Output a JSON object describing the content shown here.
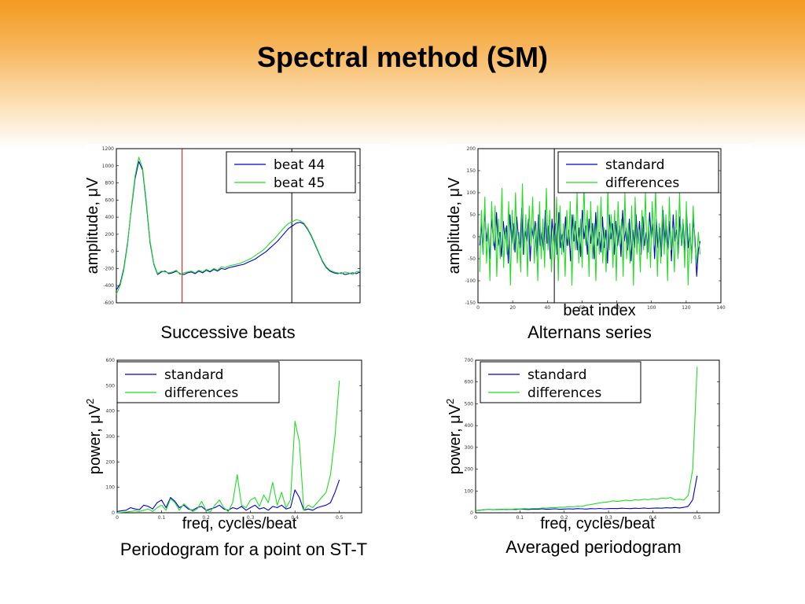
{
  "title": "Spectral method (SM)",
  "captions": [
    "Successive beats",
    "Alternans series",
    "Periodogram for a point on ST-T",
    "Averaged periodogram"
  ],
  "colors": {
    "blue": "#0000cc",
    "green": "#22dd22",
    "red": "#dd0000"
  },
  "chart_data": [
    {
      "type": "line",
      "ylabel": "amplitude, μV",
      "xlabel": "",
      "ylim": [
        -600,
        1200
      ],
      "yticks": [
        "-600",
        "-400",
        "-200",
        "0",
        "200",
        "400",
        "600",
        "800",
        "1000",
        "1200"
      ],
      "legend": [
        "beat 44",
        "beat 45"
      ],
      "legend_position": "top-right",
      "vlines": [
        {
          "x_frac": 0.27,
          "color": "red"
        },
        {
          "x_frac": 0.72,
          "color": "black"
        }
      ],
      "series": [
        {
          "name": "beat 44",
          "color": "blue",
          "values": [
            -450,
            -380,
            -200,
            100,
            500,
            850,
            1050,
            950,
            550,
            100,
            -150,
            -270,
            -240,
            -230,
            -260,
            -250,
            -230,
            -260,
            -270,
            -250,
            -240,
            -260,
            -230,
            -250,
            -220,
            -240,
            -210,
            -230,
            -200,
            -210,
            -190,
            -180,
            -170,
            -160,
            -150,
            -130,
            -110,
            -90,
            -60,
            -30,
            0,
            40,
            80,
            120,
            170,
            220,
            270,
            300,
            330,
            340,
            320,
            260,
            180,
            80,
            -20,
            -120,
            -190,
            -230,
            -250,
            -260,
            -250,
            -270,
            -260,
            -250,
            -260,
            -240
          ]
        },
        {
          "name": "beat 45",
          "color": "green",
          "values": [
            -500,
            -400,
            -220,
            80,
            520,
            880,
            1100,
            970,
            580,
            120,
            -140,
            -260,
            -230,
            -240,
            -250,
            -240,
            -220,
            -270,
            -250,
            -240,
            -230,
            -250,
            -220,
            -240,
            -210,
            -230,
            -200,
            -220,
            -180,
            -190,
            -170,
            -160,
            -150,
            -140,
            -120,
            -100,
            -80,
            -50,
            -20,
            10,
            50,
            100,
            140,
            190,
            240,
            290,
            330,
            350,
            370,
            360,
            330,
            270,
            190,
            90,
            -10,
            -110,
            -180,
            -220,
            -240,
            -250,
            -260,
            -240,
            -250,
            -270,
            -240,
            -230
          ]
        }
      ]
    },
    {
      "type": "line",
      "ylabel": "amplitude, μV",
      "xlabel": "beat index",
      "xlim": [
        0,
        140
      ],
      "ylim": [
        -150,
        200
      ],
      "xticks": [
        "0",
        "20",
        "40",
        "60",
        "80",
        "100",
        "120",
        "140"
      ],
      "yticks": [
        "-150",
        "-100",
        "-50",
        "0",
        "50",
        "100",
        "150",
        "200"
      ],
      "legend": [
        "standard",
        "differences"
      ],
      "legend_position": "top-right",
      "vlines": [
        {
          "x": 44,
          "color": "black"
        }
      ],
      "series": [
        {
          "name": "standard",
          "color": "blue",
          "x_start": 1,
          "x_end": 128,
          "values": [
            -20,
            30,
            -40,
            60,
            -10,
            20,
            -50,
            40,
            0,
            -30,
            55,
            -20,
            10,
            -45,
            35,
            -5,
            25,
            -60,
            50,
            -15,
            30,
            -35,
            45,
            0,
            -25,
            65,
            -40,
            15,
            -10,
            40,
            -55,
            20,
            -5,
            35,
            -45,
            50,
            -20,
            10,
            -30,
            60,
            -15,
            25,
            -50,
            40,
            -10,
            30,
            -40,
            55,
            -25,
            5,
            -35,
            45,
            -20,
            15,
            -55,
            50,
            -10,
            35,
            -30,
            20,
            -45,
            60,
            -5,
            25,
            -40,
            40,
            -15,
            30,
            -50,
            55,
            -20,
            10,
            -35,
            45,
            -25,
            15,
            -60,
            50,
            -5,
            30,
            -40,
            35,
            -20,
            25,
            -45,
            60,
            -10,
            20,
            -30,
            40,
            -55,
            15,
            -25,
            50,
            -15,
            35,
            -40,
            45,
            -20,
            10,
            -35,
            55,
            -5,
            30,
            -50,
            40,
            -25,
            20,
            -45,
            60,
            -15,
            25,
            -30,
            35,
            -55,
            50,
            -10,
            15,
            -40,
            45,
            -20,
            30,
            -35,
            55,
            -25,
            10,
            -50,
            40,
            -5,
            -90,
            -30,
            -10
          ]
        },
        {
          "name": "differences",
          "color": "green",
          "x_start": 1,
          "x_end": 128,
          "values": [
            -80,
            60,
            -40,
            90,
            -60,
            30,
            -100,
            80,
            -20,
            70,
            -90,
            40,
            -50,
            110,
            -70,
            20,
            -40,
            80,
            -110,
            60,
            -30,
            100,
            -60,
            10,
            -80,
            120,
            -40,
            50,
            -90,
            70,
            -20,
            90,
            -60,
            30,
            -100,
            80,
            -50,
            40,
            -70,
            110,
            -30,
            60,
            -80,
            20,
            -50,
            90,
            -100,
            70,
            -40,
            30,
            -90,
            60,
            -20,
            80,
            -110,
            50,
            -30,
            100,
            -60,
            40,
            -70,
            120,
            -20,
            60,
            -90,
            80,
            -50,
            30,
            -100,
            70,
            -40,
            90,
            -60,
            20,
            -80,
            110,
            -30,
            50,
            -70,
            60,
            -100,
            80,
            -20,
            40,
            -90,
            100,
            -50,
            30,
            -60,
            70,
            -110,
            90,
            -40,
            20,
            -80,
            60,
            -30,
            100,
            -50,
            40,
            -70,
            80,
            -20,
            110,
            -90,
            30,
            -60,
            70,
            -40,
            50,
            -100,
            90,
            -30,
            20,
            -80,
            60,
            -50,
            100,
            -20,
            40,
            -70,
            80,
            -110,
            30,
            -60,
            70,
            -20,
            -60,
            10,
            -40
          ]
        }
      ]
    },
    {
      "type": "line",
      "ylabel": "power, μV",
      "xlabel": "freq, cycles/beat",
      "xlim": [
        0,
        0.55
      ],
      "ylim": [
        0,
        600
      ],
      "xticks": [
        "0",
        "0.1",
        "0.2",
        "0.3",
        "0.4",
        "0.5"
      ],
      "yticks": [
        "0",
        "100",
        "200",
        "300",
        "400",
        "500",
        "600"
      ],
      "legend": [
        "standard",
        "differences"
      ],
      "legend_position": "top-left",
      "series": [
        {
          "name": "standard",
          "color": "blue",
          "x_start": 0,
          "x_end": 0.5,
          "values": [
            5,
            8,
            10,
            20,
            15,
            12,
            30,
            25,
            15,
            40,
            50,
            20,
            60,
            45,
            20,
            30,
            15,
            10,
            20,
            25,
            10,
            15,
            20,
            30,
            15,
            10,
            20,
            15,
            25,
            10,
            20,
            30,
            15,
            20,
            10,
            25,
            20,
            30,
            15,
            20,
            90,
            60,
            10,
            15,
            10,
            20,
            25,
            30,
            40,
            80,
            130
          ]
        },
        {
          "name": "differences",
          "color": "green",
          "x_start": 0,
          "x_end": 0.5,
          "values": [
            0,
            2,
            3,
            5,
            8,
            5,
            10,
            15,
            5,
            20,
            30,
            10,
            55,
            40,
            10,
            35,
            20,
            5,
            15,
            45,
            10,
            5,
            30,
            50,
            20,
            5,
            40,
            150,
            30,
            20,
            50,
            60,
            25,
            70,
            40,
            120,
            30,
            80,
            20,
            50,
            360,
            280,
            10,
            30,
            20,
            40,
            60,
            80,
            150,
            300,
            520
          ]
        }
      ]
    },
    {
      "type": "line",
      "ylabel": "power, μV",
      "xlabel": "freq, cycles/beat",
      "xlim": [
        0,
        0.55
      ],
      "ylim": [
        0,
        700
      ],
      "xticks": [
        "0",
        "0.1",
        "0.2",
        "0.3",
        "0.4",
        "0.5"
      ],
      "yticks": [
        "0",
        "100",
        "200",
        "300",
        "400",
        "500",
        "600",
        "700"
      ],
      "legend": [
        "standard",
        "differences"
      ],
      "legend_position": "top-left",
      "series": [
        {
          "name": "standard",
          "color": "blue",
          "x_start": 0,
          "x_end": 0.5,
          "values": [
            10,
            12,
            14,
            15,
            14,
            15,
            16,
            15,
            16,
            15,
            17,
            16,
            15,
            17,
            16,
            18,
            16,
            17,
            18,
            16,
            17,
            18,
            17,
            19,
            18,
            17,
            19,
            18,
            20,
            18,
            19,
            20,
            19,
            21,
            20,
            19,
            21,
            20,
            22,
            20,
            21,
            22,
            21,
            23,
            22,
            24,
            22,
            25,
            30,
            60,
            170
          ]
        },
        {
          "name": "differences",
          "color": "green",
          "x_start": 0,
          "x_end": 0.5,
          "values": [
            10,
            12,
            14,
            15,
            14,
            16,
            15,
            17,
            16,
            18,
            17,
            19,
            18,
            20,
            19,
            22,
            21,
            24,
            23,
            26,
            25,
            28,
            27,
            30,
            29,
            35,
            38,
            42,
            45,
            48,
            50,
            55,
            52,
            55,
            58,
            55,
            60,
            58,
            62,
            60,
            65,
            62,
            68,
            65,
            70,
            60,
            62,
            58,
            80,
            200,
            670
          ]
        }
      ]
    }
  ]
}
